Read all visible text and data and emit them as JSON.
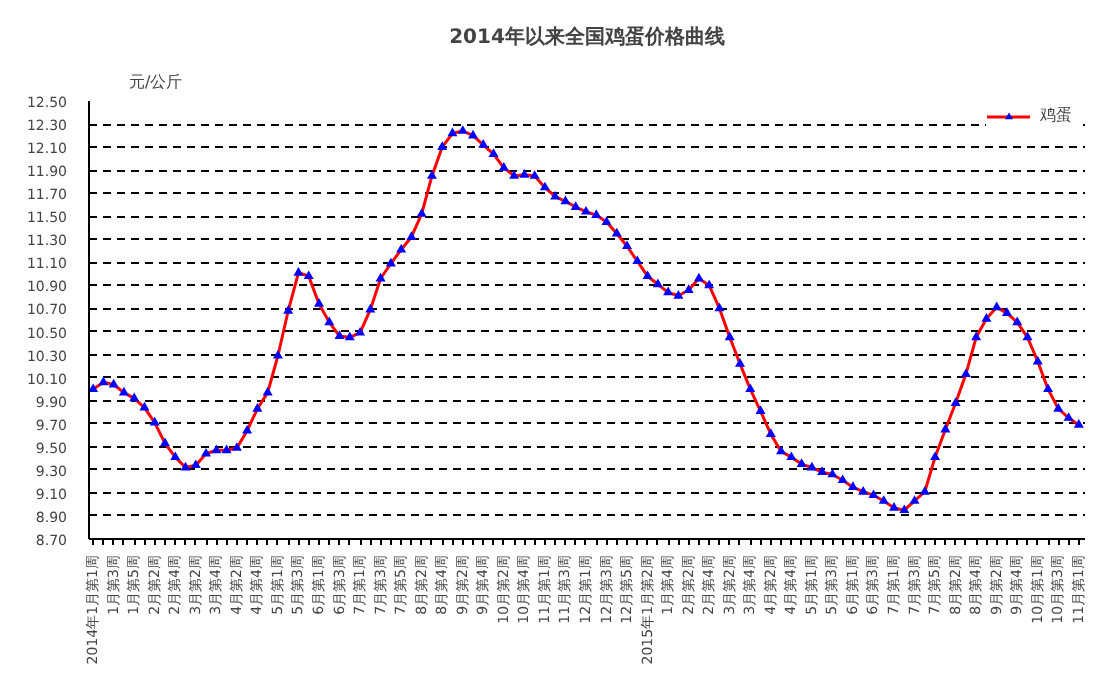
{
  "chart_data": {
    "type": "line",
    "title": "2014年以来全国鸡蛋价格曲线",
    "ylabel": "元/公斤",
    "categories": [
      "2014年1月第1周",
      null,
      "1月第3周",
      null,
      "1月第5周",
      null,
      "2月第2周",
      null,
      "2月第4周",
      null,
      "3月第2周",
      null,
      "3月第4周",
      null,
      "4月第2周",
      null,
      "4月第4周",
      null,
      "5月第1周",
      null,
      "5月第3周",
      null,
      "6月第1周",
      null,
      "6月第3周",
      null,
      "7月第1周",
      null,
      "7月第3周",
      null,
      "7月第5周",
      null,
      "8月第2周",
      null,
      "8月第4周",
      null,
      "9月第2周",
      null,
      "9月第4周",
      null,
      "10月第2周",
      null,
      "10月第4周",
      null,
      "11月第1周",
      null,
      "11月第3周",
      null,
      "12月第1周",
      null,
      "12月第3周",
      null,
      "12月第5周",
      null,
      "2015年1月第2周",
      null,
      "1月第4周",
      null,
      "2月第2周",
      null,
      "2月第4周",
      null,
      "3月第2周",
      null,
      "3月第4周",
      null,
      "4月第2周",
      null,
      "4月第4周",
      null,
      "5月第1周",
      null,
      "5月第3周",
      null,
      "6月第1周",
      null,
      "6月第3周",
      null,
      "7月第1周",
      null,
      "7月第3周",
      null,
      "7月第5周",
      null,
      "8月第2周",
      null,
      "8月第4周",
      null,
      "9月第2周",
      null,
      "9月第4周",
      null,
      "10月第1周",
      null,
      "10月第3周",
      null,
      "11月第1周"
    ],
    "series": [
      {
        "name": "鸡蛋",
        "color": "#0000ff",
        "values": [
          10.0,
          10.06,
          10.04,
          9.97,
          9.92,
          9.84,
          9.71,
          9.53,
          9.41,
          9.32,
          9.34,
          9.44,
          9.47,
          9.47,
          9.49,
          9.64,
          9.83,
          9.97,
          10.29,
          10.68,
          11.01,
          10.98,
          10.74,
          10.58,
          10.46,
          10.45,
          10.49,
          10.69,
          10.96,
          11.09,
          11.21,
          11.32,
          11.52,
          11.85,
          12.1,
          12.22,
          12.24,
          12.2,
          12.12,
          12.04,
          11.92,
          11.85,
          11.86,
          11.85,
          11.75,
          11.67,
          11.63,
          11.58,
          11.54,
          11.51,
          11.45,
          11.35,
          11.24,
          11.11,
          10.98,
          10.91,
          10.84,
          10.81,
          10.86,
          10.96,
          10.9,
          10.7,
          10.45,
          10.22,
          10.0,
          9.81,
          9.61,
          9.46,
          9.41,
          9.35,
          9.32,
          9.28,
          9.26,
          9.21,
          9.15,
          9.11,
          9.08,
          9.03,
          8.97,
          8.95,
          9.03,
          9.11,
          9.41,
          9.65,
          9.88,
          10.13,
          10.45,
          10.61,
          10.71,
          10.66,
          10.58,
          10.45,
          10.24,
          10.0,
          9.83,
          9.75,
          9.69
        ]
      }
    ],
    "ylim": [
      8.7,
      12.5
    ],
    "yticks": [
      {
        "value": 8.7,
        "label": "8.70"
      },
      {
        "value": 8.9,
        "label": "8.90"
      },
      {
        "value": 9.1,
        "label": "9.10"
      },
      {
        "value": 9.3,
        "label": "9.30"
      },
      {
        "value": 9.5,
        "label": "9.50"
      },
      {
        "value": 9.7,
        "label": "9.70"
      },
      {
        "value": 9.9,
        "label": "9.90"
      },
      {
        "value": 10.1,
        "label": "10.10"
      },
      {
        "value": 10.3,
        "label": "10.30"
      },
      {
        "value": 10.5,
        "label": "10.50"
      },
      {
        "value": 10.7,
        "label": "10.70"
      },
      {
        "value": 10.9,
        "label": "10.90"
      },
      {
        "value": 11.1,
        "label": "11.10"
      },
      {
        "value": 11.3,
        "label": "11.30"
      },
      {
        "value": 11.5,
        "label": "11.50"
      },
      {
        "value": 11.7,
        "label": "11.70"
      },
      {
        "value": 11.9,
        "label": "11.90"
      },
      {
        "value": 12.1,
        "label": "12.10"
      },
      {
        "value": 12.3,
        "label": "12.30"
      },
      {
        "value": 12.5,
        "label": "12.50"
      }
    ],
    "grid": "y",
    "legend": "top right",
    "marker": "triangle",
    "line_style": "solid"
  }
}
